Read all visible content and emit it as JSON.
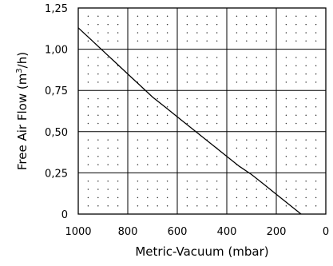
{
  "chart_data": {
    "type": "line",
    "xlabel": "Metric-Vacuum (mbar)",
    "ylabel_prefix": "Free Air Flow (m",
    "ylabel_sup": "3",
    "ylabel_suffix": "/h)",
    "xlim": [
      1000,
      0
    ],
    "ylim": [
      0,
      1.25
    ],
    "x_ticks": [
      1000,
      800,
      600,
      400,
      200,
      0
    ],
    "x_tick_labels": [
      "1000",
      "800",
      "600",
      "400",
      "200",
      "0"
    ],
    "y_ticks": [
      0,
      0.25,
      0.5,
      0.75,
      1.0,
      1.25
    ],
    "y_tick_labels": [
      "0",
      "0,25",
      "0,50",
      "0,75",
      "1,00",
      "1,25"
    ],
    "grid": true,
    "minor_grid": "dotted",
    "series": [
      {
        "x": [
          1000,
          950,
          900,
          850,
          800,
          750,
          700,
          650,
          600,
          550,
          500,
          450,
          400,
          350,
          300,
          250,
          200,
          150,
          100
        ],
        "y": [
          1.13,
          1.06,
          0.99,
          0.92,
          0.85,
          0.78,
          0.71,
          0.65,
          0.59,
          0.53,
          0.47,
          0.41,
          0.35,
          0.29,
          0.24,
          0.18,
          0.12,
          0.06,
          0.0
        ]
      }
    ]
  }
}
